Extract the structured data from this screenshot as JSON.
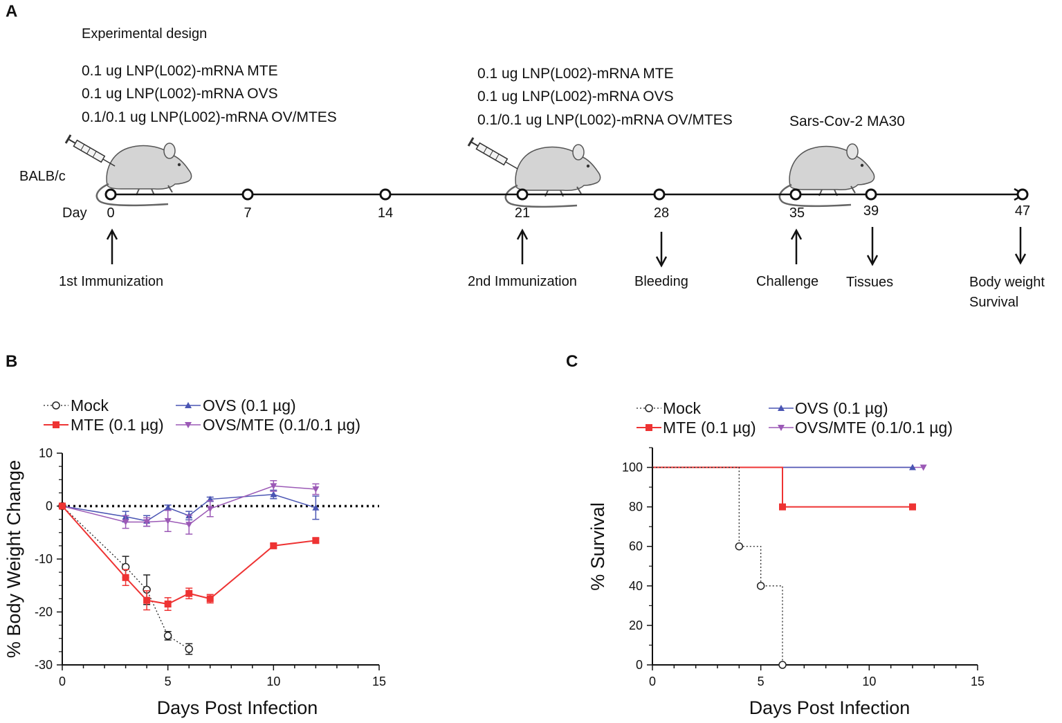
{
  "panels": {
    "a": "A",
    "b": "B",
    "c": "C"
  },
  "timeline": {
    "title": "Experimental design",
    "group1": [
      "0.1 ug LNP(L002)-mRNA MTE",
      "0.1 ug LNP(L002)-mRNA OVS",
      "0.1/0.1 ug LNP(L002)-mRNA OV/MTES"
    ],
    "group2": [
      "0.1 ug LNP(L002)-mRNA MTE",
      "0.1 ug LNP(L002)-mRNA OVS",
      "0.1/0.1 ug LNP(L002)-mRNA OV/MTES"
    ],
    "challenge_virus": "Sars-Cov-2 MA30",
    "strain": "BALB/c",
    "day_label": "Day",
    "days": [
      "0",
      "7",
      "14",
      "21",
      "28",
      "35",
      "39",
      "47"
    ],
    "events": {
      "first_immunization": "1st Immunization",
      "second_immunization": "2nd Immunization",
      "bleeding": "Bleeding",
      "challenge": "Challenge",
      "tissues": "Tissues",
      "body_weight": "Body weight",
      "survival": "Survival"
    }
  },
  "colors": {
    "mock": "#222222",
    "mte": "#ee3333",
    "ovs": "#4a55b3",
    "ovsmte": "#9b59b6"
  },
  "chart_data": [
    {
      "type": "line",
      "title": "",
      "xlabel": "Days Post Infection",
      "ylabel": "% Body Weight Change",
      "xlim": [
        0,
        15
      ],
      "ylim": [
        -30,
        10
      ],
      "xticks": [
        "0",
        "5",
        "10",
        "15"
      ],
      "yticks": [
        "10",
        "0",
        "-10",
        "-20",
        "-30"
      ],
      "legend": [
        "Mock",
        "OVS (0.1 µg)",
        "MTE (0.1 µg)",
        "OVS/MTE (0.1/0.1 µg)"
      ],
      "series": [
        {
          "name": "Mock",
          "x": [
            0,
            3,
            4,
            5,
            6
          ],
          "y": [
            0,
            -11.5,
            -15.8,
            -24.5,
            -27
          ],
          "err": [
            0,
            2,
            2.8,
            0.8,
            1
          ]
        },
        {
          "name": "MTE (0.1 µg)",
          "x": [
            0,
            3,
            4,
            5,
            6,
            7,
            10,
            12
          ],
          "y": [
            0,
            -13.5,
            -17.8,
            -18.5,
            -16.5,
            -17.5,
            -7.5,
            -6.5
          ],
          "err": [
            0,
            1.5,
            1.8,
            1.2,
            1,
            0.8,
            0.4,
            0.4
          ]
        },
        {
          "name": "OVS (0.1 µg)",
          "x": [
            0,
            3,
            4,
            5,
            6,
            7,
            10,
            12
          ],
          "y": [
            0,
            -2,
            -2.8,
            -0.3,
            -1.8,
            1.3,
            2.2,
            -0.3
          ],
          "err": [
            0,
            1,
            1,
            0.5,
            0.8,
            0.4,
            0.8,
            2.2
          ]
        },
        {
          "name": "OVS/MTE (0.1/0.1 µg)",
          "x": [
            0,
            3,
            4,
            5,
            6,
            7,
            10,
            12
          ],
          "y": [
            0,
            -3,
            -3,
            -2.8,
            -3.5,
            -0.5,
            3.8,
            3.2
          ],
          "err": [
            0,
            1.2,
            0.8,
            2,
            1.8,
            1.5,
            1,
            1
          ]
        }
      ]
    },
    {
      "type": "line",
      "title": "",
      "xlabel": "Days Post Infection",
      "ylabel": "% Survival",
      "xlim": [
        0,
        15
      ],
      "ylim": [
        0,
        110
      ],
      "xticks": [
        "0",
        "5",
        "10",
        "15"
      ],
      "yticks": [
        "100",
        "80",
        "60",
        "40",
        "20",
        "0"
      ],
      "legend": [
        "Mock",
        "OVS (0.1 µg)",
        "MTE (0.1 µg)",
        "OVS/MTE (0.1/0.1 µg)"
      ],
      "series": [
        {
          "name": "Mock",
          "x": [
            0,
            4,
            5,
            6
          ],
          "y": [
            100,
            60,
            40,
            0
          ]
        },
        {
          "name": "MTE (0.1 µg)",
          "x": [
            0,
            6,
            12
          ],
          "y": [
            100,
            80,
            80
          ]
        },
        {
          "name": "OVS (0.1 µg)",
          "x": [
            0,
            12
          ],
          "y": [
            100,
            100
          ]
        },
        {
          "name": "OVS/MTE (0.1/0.1 µg)",
          "x": [
            0,
            12.5
          ],
          "y": [
            100,
            100
          ]
        }
      ]
    }
  ]
}
